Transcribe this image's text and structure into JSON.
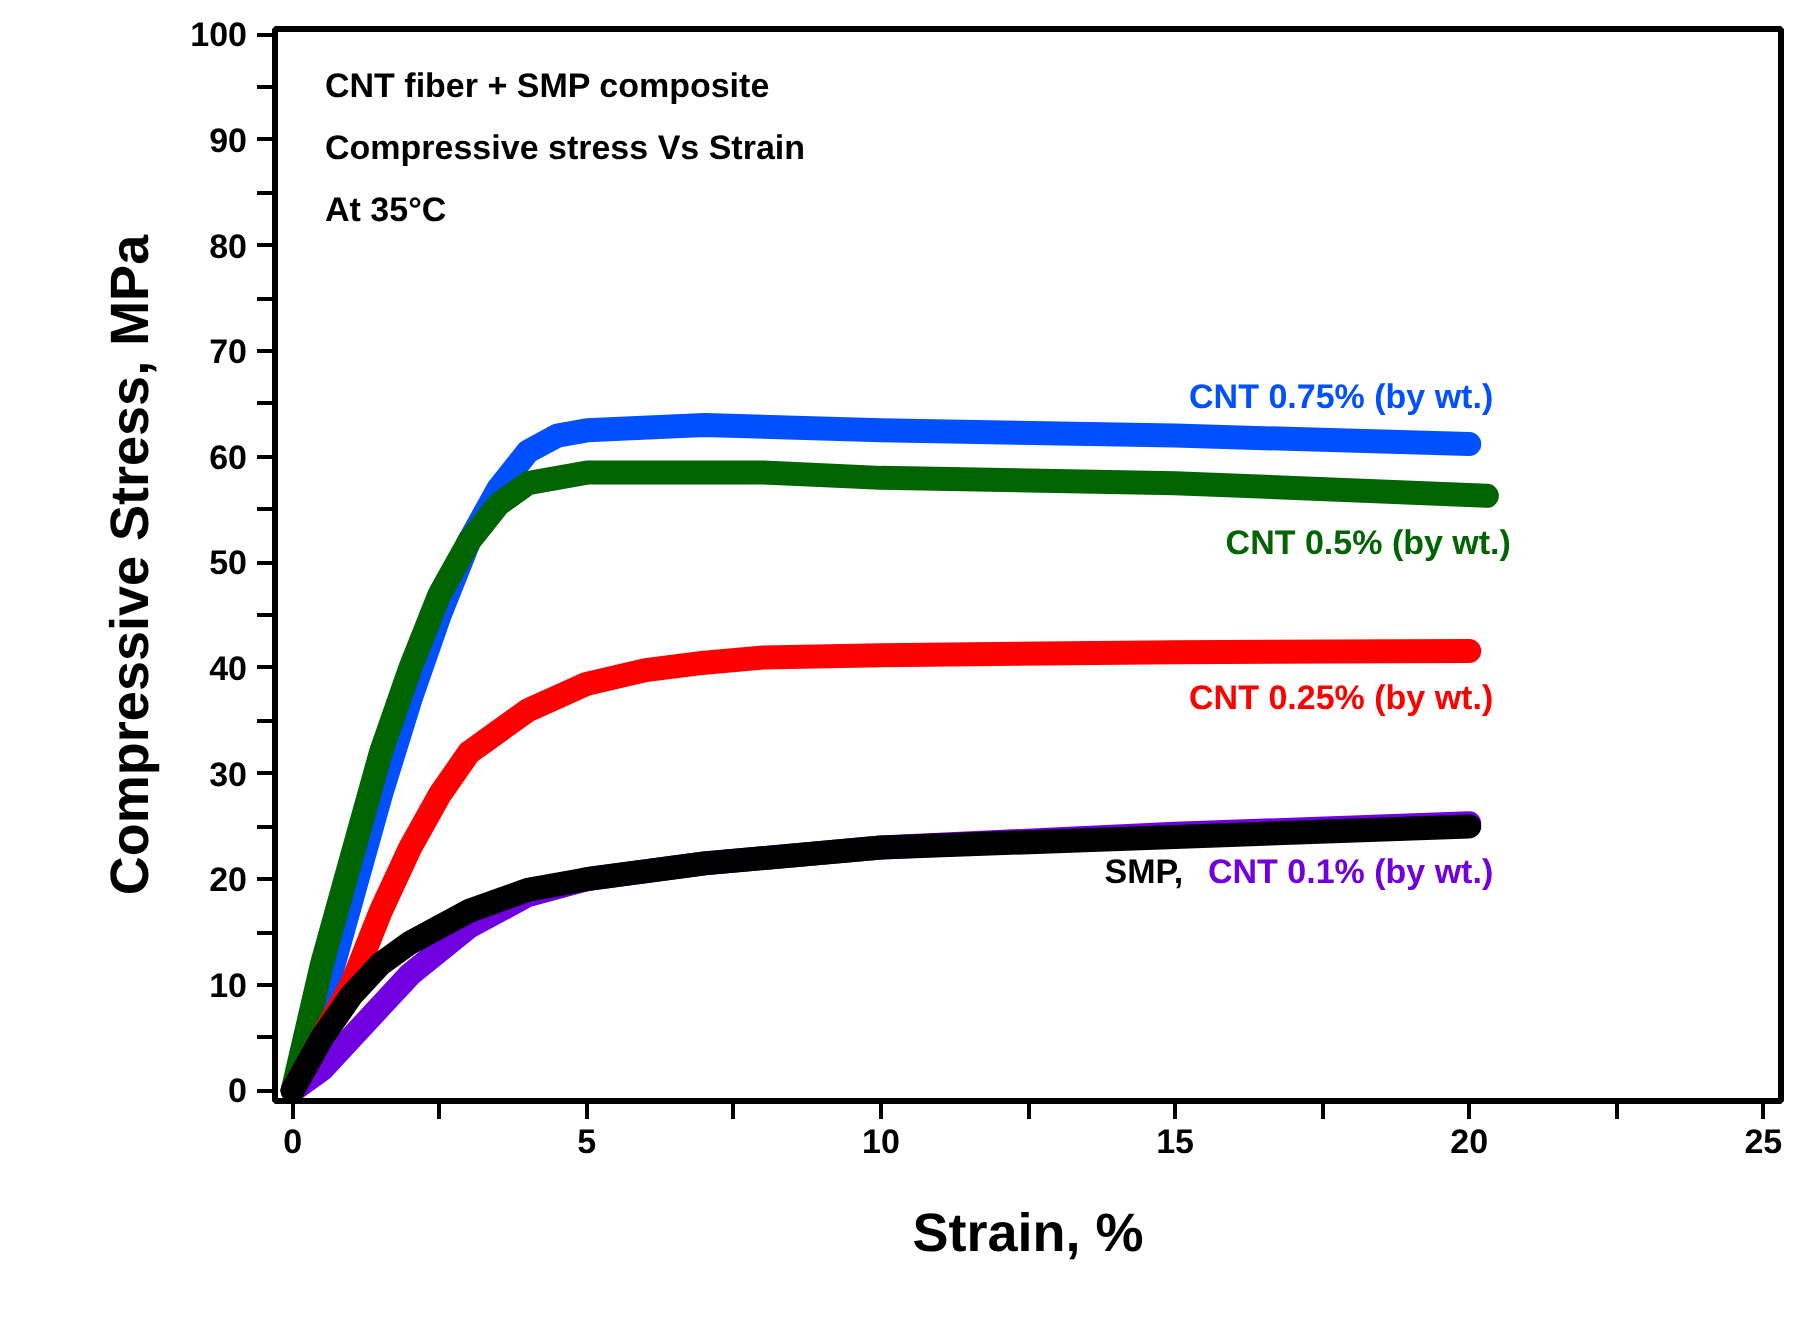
{
  "chart_data": {
    "type": "line",
    "xlabel": "Strain, %",
    "ylabel": "Compressive Stress, MPa",
    "annotations": [
      "CNT fiber + SMP composite",
      "Compressive stress Vs Strain",
      "At 35°C"
    ],
    "xlim": [
      -0.3,
      25.3
    ],
    "ylim": [
      -1,
      100.5
    ],
    "xticks": [
      0,
      {
        "value": 2.5,
        "label": null
      },
      5,
      {
        "value": 7.5,
        "label": null
      },
      10,
      {
        "value": 12.5,
        "label": null
      },
      15,
      {
        "value": 17.5,
        "label": null
      },
      20,
      {
        "value": 22.5,
        "label": null
      },
      25
    ],
    "yticks": [
      0,
      {
        "value": 5,
        "label": null
      },
      10,
      {
        "value": 15,
        "label": null
      },
      20,
      {
        "value": 25,
        "label": null
      },
      30,
      {
        "value": 35,
        "label": null
      },
      40,
      {
        "value": 45,
        "label": null
      },
      50,
      {
        "value": 55,
        "label": null
      },
      60,
      {
        "value": 65,
        "label": null
      },
      70,
      {
        "value": 75,
        "label": null
      },
      80,
      {
        "value": 85,
        "label": null
      },
      90,
      {
        "value": 95,
        "label": null
      },
      100
    ],
    "grid": false,
    "line_style": "solid",
    "series": [
      {
        "name": "CNT 0.75% (by wt.)",
        "color": "#0050ff",
        "x": [
          0,
          0.5,
          1,
          1.5,
          2,
          2.5,
          3,
          3.5,
          4,
          4.5,
          5,
          7,
          10,
          15,
          20
        ],
        "values": [
          0,
          8,
          18,
          28,
          37,
          45,
          52,
          57,
          60.5,
          62,
          62.5,
          63,
          62.5,
          62,
          61.2
        ]
      },
      {
        "name": "CNT 0.5% (by wt.)",
        "color": "#006400",
        "x": [
          0,
          0.5,
          1,
          1.5,
          2,
          2.5,
          3,
          3.5,
          4,
          5,
          8,
          10,
          15,
          20.3
        ],
        "values": [
          0,
          12,
          22,
          32,
          40,
          47,
          52,
          55.5,
          57.5,
          58.5,
          58.5,
          58,
          57.5,
          56.3
        ]
      },
      {
        "name": "CNT 0.25% (by wt.)",
        "color": "#ff0000",
        "x": [
          0,
          0.5,
          1,
          1.5,
          2,
          2.5,
          3,
          4,
          5,
          6,
          7,
          8,
          10,
          15,
          20
        ],
        "values": [
          0,
          5,
          10,
          17,
          23,
          28,
          32,
          36,
          38.5,
          39.8,
          40.5,
          41,
          41.2,
          41.5,
          41.6
        ]
      },
      {
        "name": "CNT 0.1% (by wt.)",
        "color": "#7000e0",
        "x": [
          0,
          0.5,
          1,
          1.5,
          2,
          3,
          4,
          5,
          7,
          10,
          15,
          20
        ],
        "values": [
          0,
          2,
          5,
          8,
          11,
          15.5,
          18.5,
          20,
          21.5,
          23,
          24.3,
          25.3
        ]
      },
      {
        "name": "SMP,",
        "color": "#000000",
        "x": [
          0,
          0.5,
          1,
          1.5,
          2,
          3,
          4,
          5,
          7,
          10,
          15,
          20
        ],
        "values": [
          0,
          5,
          9,
          12,
          14,
          17,
          19,
          20,
          21.5,
          23,
          24,
          25
        ]
      }
    ]
  }
}
